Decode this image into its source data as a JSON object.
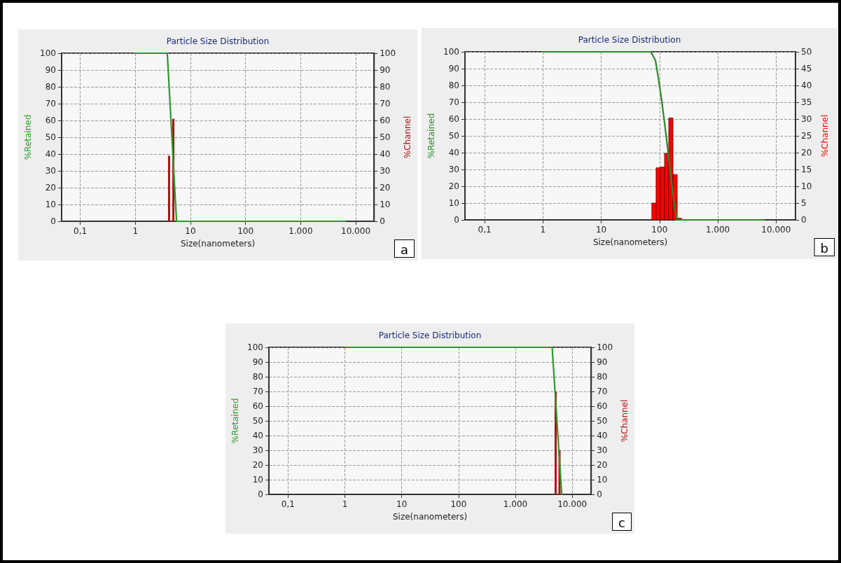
{
  "chart_data": [
    {
      "type": "line",
      "title": "Particle Size Distribution",
      "xlabel": "Size(nanometers)",
      "ylabel": "%Retained",
      "y2label": "%Channel",
      "log": "x",
      "grid": true,
      "annotations": [
        "a"
      ],
      "xlim": [
        0.046,
        21500
      ],
      "xticks": [
        {
          "value": 0.1,
          "label": "0,1"
        },
        1,
        10,
        100,
        {
          "value": 1000,
          "label": "1.000"
        },
        {
          "value": 10000,
          "label": "10.000"
        }
      ],
      "ylim": [
        0,
        100
      ],
      "yticks": [
        0,
        10,
        20,
        30,
        40,
        50,
        60,
        70,
        80,
        90,
        100
      ],
      "y2lim": [
        0,
        100
      ],
      "y2ticks": [
        0,
        10,
        20,
        30,
        40,
        50,
        60,
        70,
        80,
        90,
        100
      ],
      "series": [
        {
          "color": "#2a9a2a",
          "x": [
            1,
            3.8,
            5.6,
            6450
          ],
          "values": [
            100,
            100,
            0,
            0
          ]
        },
        {
          "type": "bar",
          "axis": "y2",
          "color": "#b01010",
          "x": [
            4.1,
            4.9
          ],
          "values": [
            39,
            61
          ]
        }
      ]
    },
    {
      "type": "line",
      "title": "Particle Size Distribution",
      "xlabel": "Size(nanometers)",
      "ylabel": "%Retained",
      "y2label": "%Channel",
      "log": "x",
      "grid": true,
      "annotations": [
        "b"
      ],
      "xlim": [
        0.046,
        21500
      ],
      "xticks": [
        {
          "value": 0.1,
          "label": "0,1"
        },
        1,
        10,
        100,
        {
          "value": 1000,
          "label": "1.000"
        },
        {
          "value": 10000,
          "label": "10.000"
        }
      ],
      "ylim": [
        0,
        100
      ],
      "yticks": [
        0,
        10,
        20,
        30,
        40,
        50,
        60,
        70,
        80,
        90,
        100
      ],
      "y2lim": [
        0,
        50
      ],
      "y2ticks": [
        0,
        5,
        10,
        15,
        20,
        25,
        30,
        35,
        40,
        45,
        50
      ],
      "series": [
        {
          "color": "#2a8a2a",
          "x": [
            1,
            71,
            85,
            95,
            110,
            130,
            152,
            178,
            197,
            6200
          ],
          "values": [
            100,
            100,
            95,
            85,
            70,
            50,
            30,
            10,
            0,
            0
          ]
        },
        {
          "type": "histogram",
          "axis": "y2",
          "color": "#ff0000",
          "bins": [
            73.8,
            87.3,
            103,
            122,
            144,
            170,
            201,
            238
          ],
          "values": [
            5,
            15.5,
            15.7,
            19.8,
            30.3,
            13.5,
            0.5
          ]
        }
      ]
    },
    {
      "type": "line",
      "title": "Particle Size Distribution",
      "xlabel": "Size(nanometers)",
      "ylabel": "%Retained",
      "y2label": "%Channel",
      "log": "x",
      "grid": true,
      "annotations": [
        "c"
      ],
      "xlim": [
        0.046,
        21500
      ],
      "xticks": [
        {
          "value": 0.1,
          "label": "0,1"
        },
        1,
        10,
        100,
        {
          "value": 1000,
          "label": "1.000"
        },
        {
          "value": 10000,
          "label": "10.000"
        }
      ],
      "ylim": [
        0,
        100
      ],
      "yticks": [
        0,
        10,
        20,
        30,
        40,
        50,
        60,
        70,
        80,
        90,
        100
      ],
      "y2lim": [
        0,
        100
      ],
      "y2ticks": [
        0,
        10,
        20,
        30,
        40,
        50,
        60,
        70,
        80,
        90,
        100
      ],
      "series": [
        {
          "color": "#2a9a2a",
          "x": [
            1,
            4430,
            6530
          ],
          "values": [
            100,
            100,
            0
          ]
        },
        {
          "type": "bar",
          "axis": "y2",
          "color": "#b01010",
          "x": [
            5100,
            5970
          ],
          "values": [
            70,
            30
          ]
        }
      ]
    }
  ]
}
